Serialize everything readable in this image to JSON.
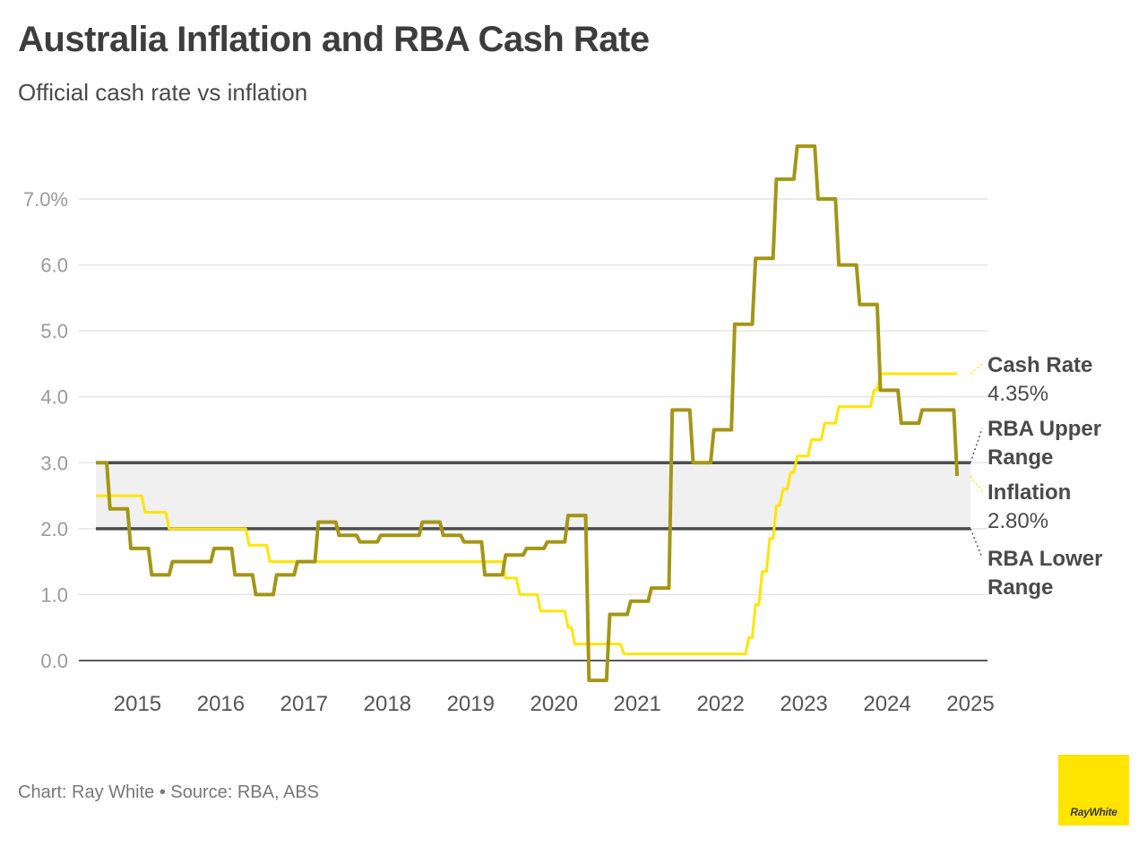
{
  "header": {
    "title": "Australia Inflation and RBA Cash Rate",
    "subtitle": "Official cash rate vs inflation"
  },
  "footer": {
    "source": "Chart: Ray White • Source: RBA, ABS",
    "logo_text": "RayWhite"
  },
  "colors": {
    "inflation": "#a39617",
    "cash_rate": "#ffe500",
    "range_line": "#4d4d4d",
    "range_band": "#f0f0f0",
    "grid": "#e4e4e4",
    "brand": "#ffe500"
  },
  "chart_data": {
    "type": "line",
    "title": "Australia Inflation and RBA Cash Rate",
    "subtitle": "Official cash rate vs inflation",
    "ylim": [
      0,
      8
    ],
    "xlim": [
      2014.5,
      2025.0
    ],
    "grid": true,
    "y_ticks": [
      {
        "value": 0,
        "label": "0.0"
      },
      {
        "value": 1,
        "label": "1.0"
      },
      {
        "value": 2,
        "label": "2.0"
      },
      {
        "value": 3,
        "label": "3.0"
      },
      {
        "value": 4,
        "label": "4.0"
      },
      {
        "value": 5,
        "label": "5.0"
      },
      {
        "value": 6,
        "label": "6.0"
      },
      {
        "value": 7,
        "label": "7.0%"
      }
    ],
    "x_ticks": [
      {
        "value": 2015,
        "label": "2015"
      },
      {
        "value": 2016,
        "label": "2016"
      },
      {
        "value": 2017,
        "label": "2017"
      },
      {
        "value": 2018,
        "label": "2018"
      },
      {
        "value": 2019,
        "label": "2019"
      },
      {
        "value": 2020,
        "label": "2020"
      },
      {
        "value": 2021,
        "label": "2021"
      },
      {
        "value": 2022,
        "label": "2022"
      },
      {
        "value": 2023,
        "label": "2023"
      },
      {
        "value": 2024,
        "label": "2024"
      },
      {
        "value": 2025,
        "label": "2025"
      }
    ],
    "band": {
      "from": 2.0,
      "to": 3.0
    },
    "series": [
      {
        "name": "Cash Rate",
        "label_value": "4.35%",
        "type": "step",
        "x": [
          2014.5,
          2015.09,
          2015.38,
          2016.34,
          2016.59,
          2019.42,
          2019.59,
          2019.84,
          2020.17,
          2020.25,
          2020.84,
          2022.34,
          2022.42,
          2022.5,
          2022.59,
          2022.67,
          2022.75,
          2022.84,
          2022.92,
          2023.09,
          2023.25,
          2023.42,
          2023.84,
          2023.92,
          2024.84
        ],
        "values": [
          2.5,
          2.25,
          2.0,
          1.75,
          1.5,
          1.25,
          1.0,
          0.75,
          0.5,
          0.25,
          0.1,
          0.35,
          0.85,
          1.35,
          1.85,
          2.35,
          2.6,
          2.85,
          3.1,
          3.35,
          3.6,
          3.85,
          4.1,
          4.35,
          4.35
        ]
      },
      {
        "name": "Inflation",
        "label_value": "2.80%",
        "type": "step",
        "x": [
          2014.5,
          2014.67,
          2014.92,
          2015.17,
          2015.42,
          2015.67,
          2015.92,
          2016.17,
          2016.42,
          2016.67,
          2016.92,
          2017.17,
          2017.42,
          2017.67,
          2017.92,
          2018.17,
          2018.42,
          2018.67,
          2018.92,
          2019.17,
          2019.42,
          2019.67,
          2019.92,
          2020.17,
          2020.42,
          2020.67,
          2020.92,
          2021.17,
          2021.42,
          2021.67,
          2021.92,
          2022.17,
          2022.42,
          2022.67,
          2022.92,
          2023.17,
          2023.42,
          2023.67,
          2023.92,
          2024.17,
          2024.42,
          2024.67,
          2024.84
        ],
        "values": [
          3.0,
          2.3,
          1.7,
          1.3,
          1.5,
          1.5,
          1.7,
          1.3,
          1.0,
          1.3,
          1.5,
          2.1,
          1.9,
          1.8,
          1.9,
          1.9,
          2.1,
          1.9,
          1.8,
          1.3,
          1.6,
          1.7,
          1.8,
          2.2,
          -0.3,
          0.7,
          0.9,
          1.1,
          3.8,
          3.0,
          3.5,
          5.1,
          6.1,
          7.3,
          7.8,
          7.0,
          6.0,
          5.4,
          4.1,
          3.6,
          3.8,
          3.8,
          2.8
        ]
      }
    ],
    "reference_lines": [
      {
        "name": "RBA Upper Range",
        "value": 3.0
      },
      {
        "name": "RBA Lower Range",
        "value": 2.0
      }
    ],
    "end_labels": {
      "cash_rate": {
        "name": "Cash Rate",
        "value": "4.35%"
      },
      "upper": {
        "name1": "RBA Upper",
        "name2": "Range"
      },
      "inflation": {
        "name": "Inflation",
        "value": "2.80%"
      },
      "lower": {
        "name1": "RBA Lower",
        "name2": "Range"
      }
    }
  }
}
